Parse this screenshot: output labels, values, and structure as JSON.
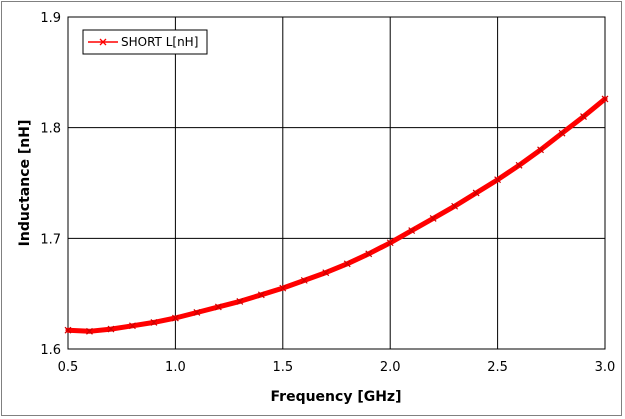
{
  "chart_data": {
    "type": "line",
    "title": "",
    "xlabel": "Frequency [GHz]",
    "ylabel": "Inductance [nH]",
    "xlim": [
      0.5,
      3.0
    ],
    "ylim": [
      1.6,
      1.9
    ],
    "xticks": [
      0.5,
      1.0,
      1.5,
      2.0,
      2.5,
      3.0
    ],
    "xtick_labels": [
      "0.5",
      "1.0",
      "1.5",
      "2.0",
      "2.5",
      "3.0"
    ],
    "yticks": [
      1.6,
      1.7,
      1.8,
      1.9
    ],
    "ytick_labels": [
      "1.6",
      "1.7",
      "1.8",
      "1.9"
    ],
    "grid": true,
    "legend_position": "top-left",
    "series": [
      {
        "name": "SHORT L[nH]",
        "color": "#ff0000",
        "marker": "x",
        "x": [
          0.5,
          0.6,
          0.7,
          0.8,
          0.9,
          1.0,
          1.1,
          1.2,
          1.3,
          1.4,
          1.5,
          1.6,
          1.7,
          1.8,
          1.9,
          2.0,
          2.1,
          2.2,
          2.3,
          2.4,
          2.5,
          2.6,
          2.7,
          2.8,
          2.9,
          3.0
        ],
        "y": [
          1.617,
          1.616,
          1.618,
          1.621,
          1.624,
          1.628,
          1.633,
          1.638,
          1.643,
          1.649,
          1.655,
          1.662,
          1.669,
          1.677,
          1.686,
          1.696,
          1.707,
          1.718,
          1.729,
          1.741,
          1.753,
          1.766,
          1.78,
          1.795,
          1.81,
          1.826
        ]
      }
    ]
  }
}
